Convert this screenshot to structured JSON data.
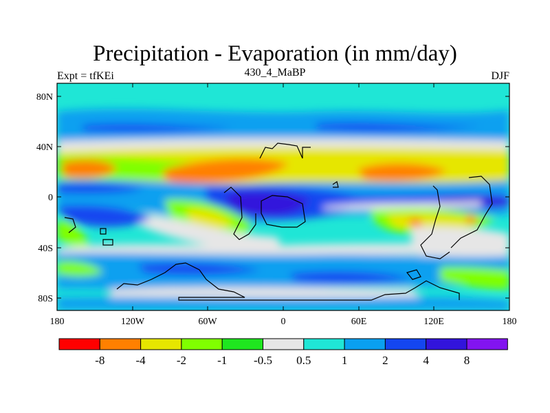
{
  "title": "Precipitation - Evaporation (in mm/day)",
  "left_label": "Expt = tfKEi",
  "center_label": "430_4_MaBP",
  "right_label": "DJF",
  "y_ticks": [
    "80N",
    "40N",
    "0",
    "40S",
    "80S"
  ],
  "x_ticks": [
    "180",
    "120W",
    "60W",
    "0",
    "60E",
    "120E",
    "180"
  ],
  "colorbar": {
    "labels": [
      "-8",
      "-4",
      "-2",
      "-1",
      "-0.5",
      "0.5",
      "1",
      "2",
      "4",
      "8"
    ],
    "colors": [
      "#ff0000",
      "#ff8000",
      "#e6e600",
      "#80ff00",
      "#1fe61f",
      "#e6e6e6",
      "#1fe6d6",
      "#0aa0f0",
      "#1446f0",
      "#3214dc",
      "#8214f0"
    ]
  }
}
